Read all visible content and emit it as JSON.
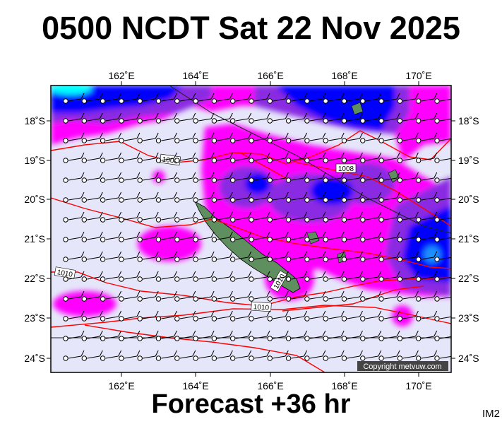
{
  "title": "0500 NCDT Sat 22 Nov 2025",
  "footer": "Forecast +36 hr",
  "panel_code": "IM2",
  "copyright": "Copyright metvuw.com",
  "axes": {
    "lon_ticks": [
      "162˚E",
      "164˚E",
      "166˚E",
      "168˚E",
      "170˚E"
    ],
    "lat_ticks": [
      "18˚S",
      "19˚S",
      "20˚S",
      "21˚S",
      "22˚S",
      "23˚S",
      "24˚S"
    ]
  },
  "isobar_labels": [
    "1008",
    "1008",
    "1010",
    "1010",
    "1010"
  ],
  "colors": {
    "background_field": "#e6e6fa",
    "light_precip": "#ff00ff",
    "medium_precip": "#8a2be2",
    "heavy_precip": "#0000ff",
    "extreme_precip": "#00ffff",
    "isobars": "#ff0000",
    "land": "#5f8f5f"
  }
}
